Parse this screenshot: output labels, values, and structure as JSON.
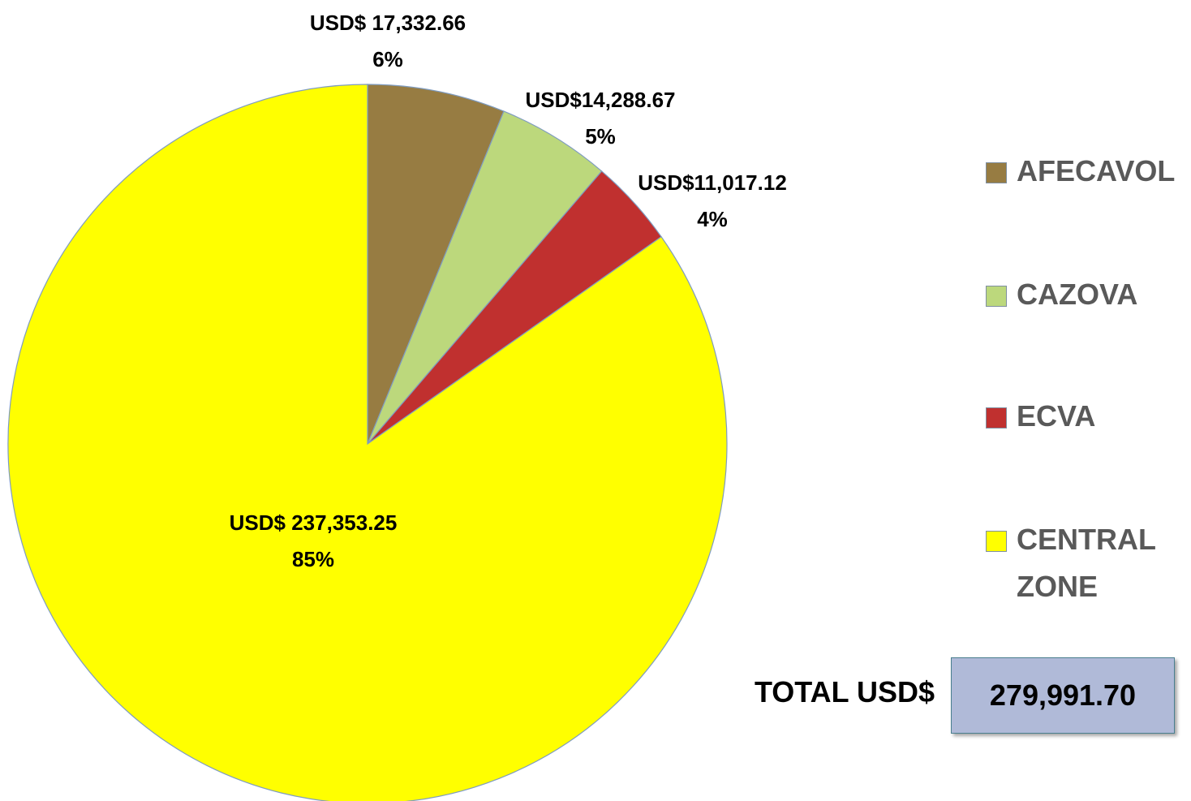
{
  "chart_data": {
    "type": "pie",
    "categories": [
      "AFECAVOL",
      "CAZOVA",
      "ECVA",
      "CENTRAL ZONE"
    ],
    "values": [
      17332.66,
      14288.67,
      11017.12,
      237353.25
    ],
    "value_labels": [
      "USD$ 17,332.66",
      "USD$14,288.67",
      "USD$11,017.12",
      "USD$ 237,353.25"
    ],
    "percent_labels": [
      "6%",
      "5%",
      "4%",
      "85%"
    ],
    "colors": [
      "#977c42",
      "#bcd87c",
      "#c0302f",
      "#ffff00"
    ],
    "legend": "right",
    "total_label": "TOTAL USD$",
    "total_text": "279,991.70"
  }
}
